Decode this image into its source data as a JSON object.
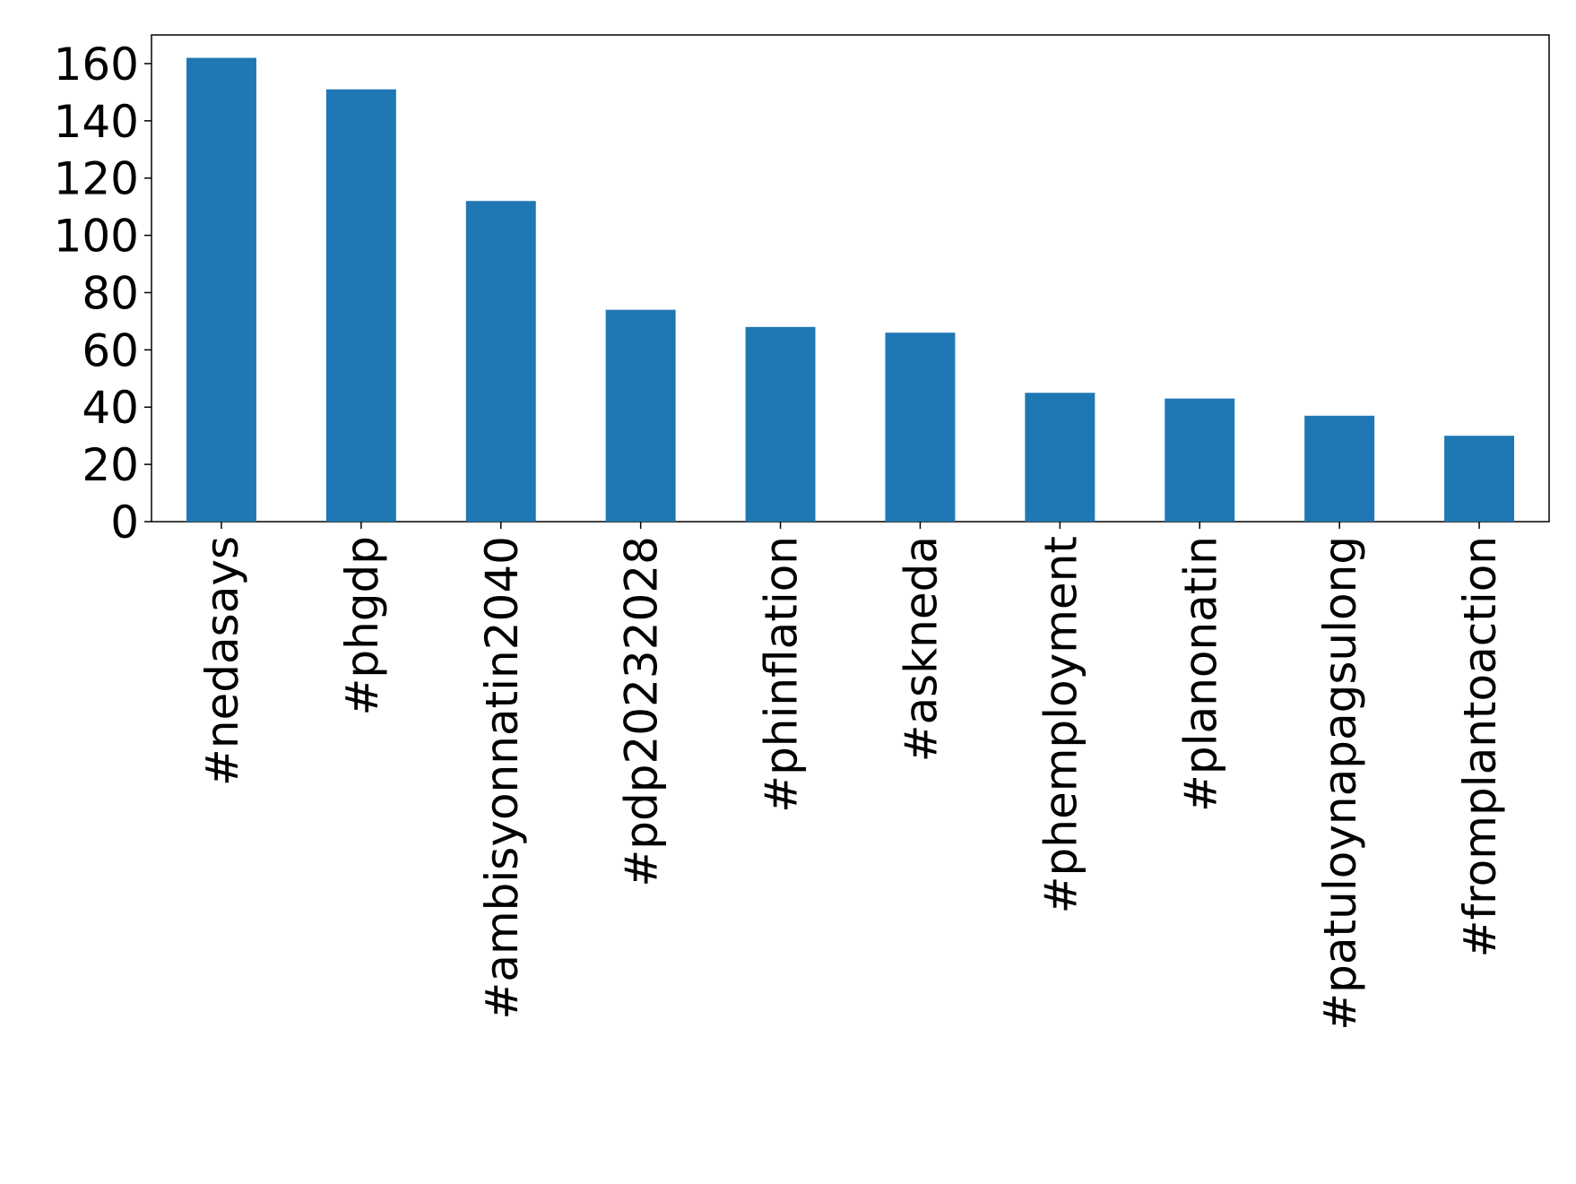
{
  "chart_data": {
    "type": "bar",
    "categories": [
      "#nedasays",
      "#phgdp",
      "#ambisyonnatin2040",
      "#pdp20232028",
      "#phinflation",
      "#askneda",
      "#phemployment",
      "#planonatin",
      "#patuloynapagsulong",
      "#fromplantoaction"
    ],
    "values": [
      162,
      151,
      112,
      74,
      68,
      66,
      45,
      43,
      37,
      30
    ],
    "color": "#1f77b4",
    "ylim": [
      0,
      170
    ],
    "yticks": [
      0,
      20,
      40,
      60,
      80,
      100,
      120,
      140,
      160
    ],
    "grid": false
  }
}
